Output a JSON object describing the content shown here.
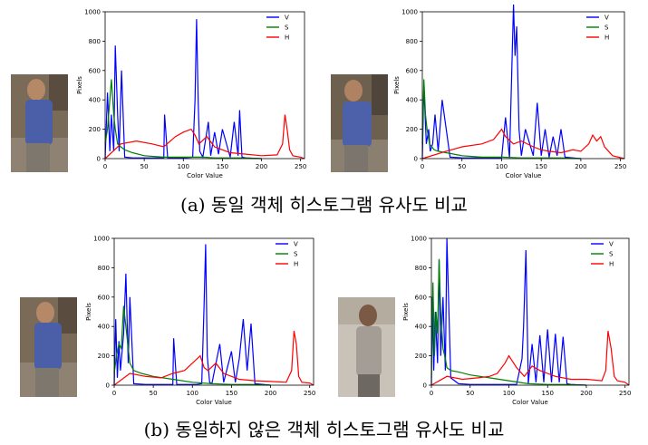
{
  "captions": {
    "a": "(a) 동일 객체 히스토그램 유사도 비교",
    "b": "(b) 동일하지 않은 객체 히스토그램 유사도 비교"
  },
  "colors": {
    "V": "#0000ff",
    "S": "#008000",
    "H": "#ff0000"
  },
  "chart_data": [
    {
      "type": "line",
      "title": "",
      "xlabel": "Color Value",
      "ylabel": "Pixels",
      "xlim": [
        0,
        255
      ],
      "ylim": [
        0,
        1000
      ],
      "xticks": [
        0,
        50,
        100,
        150,
        200,
        250
      ],
      "yticks": [
        0,
        200,
        400,
        600,
        800,
        1000
      ],
      "legend": "top-right",
      "series": [
        {
          "name": "V",
          "x": [
            0,
            3,
            6,
            8,
            11,
            13,
            16,
            18,
            21,
            25,
            35,
            50,
            75,
            76,
            80,
            100,
            112,
            115,
            117,
            119,
            121,
            125,
            132,
            135,
            140,
            145,
            150,
            160,
            165,
            170,
            172,
            175,
            180,
            200
          ],
          "values": [
            0,
            450,
            50,
            300,
            50,
            770,
            300,
            50,
            600,
            10,
            5,
            5,
            5,
            300,
            5,
            5,
            10,
            400,
            950,
            380,
            50,
            10,
            250,
            20,
            180,
            30,
            200,
            10,
            250,
            20,
            330,
            10,
            5,
            0
          ]
        },
        {
          "name": "S",
          "x": [
            0,
            3,
            6,
            8,
            11,
            13,
            16,
            20,
            25,
            35,
            50,
            75,
            100,
            125,
            140,
            150,
            175,
            200
          ],
          "values": [
            100,
            200,
            400,
            540,
            300,
            200,
            100,
            80,
            60,
            40,
            20,
            10,
            10,
            10,
            5,
            5,
            5,
            0
          ]
        },
        {
          "name": "H",
          "x": [
            0,
            20,
            40,
            60,
            75,
            90,
            100,
            110,
            115,
            120,
            130,
            140,
            150,
            160,
            180,
            200,
            220,
            227,
            230,
            233,
            236,
            240,
            250,
            255
          ],
          "values": [
            0,
            100,
            120,
            100,
            80,
            150,
            180,
            200,
            160,
            100,
            150,
            80,
            60,
            40,
            30,
            20,
            25,
            100,
            300,
            190,
            60,
            20,
            10,
            0
          ]
        }
      ]
    },
    {
      "type": "line",
      "title": "",
      "xlabel": "Color Value",
      "ylabel": "Pixels",
      "xlim": [
        0,
        255
      ],
      "ylim": [
        0,
        1000
      ],
      "xticks": [
        0,
        50,
        100,
        150,
        200,
        250
      ],
      "yticks": [
        0,
        200,
        400,
        600,
        800,
        1000
      ],
      "legend": "top-right",
      "series": [
        {
          "name": "V",
          "x": [
            0,
            2,
            5,
            8,
            10,
            13,
            16,
            20,
            25,
            35,
            50,
            75,
            100,
            105,
            110,
            115,
            117,
            119,
            122,
            125,
            130,
            140,
            145,
            150,
            155,
            160,
            165,
            170,
            175,
            180,
            200
          ],
          "values": [
            0,
            500,
            100,
            200,
            50,
            100,
            300,
            50,
            400,
            10,
            5,
            5,
            5,
            280,
            5,
            1050,
            700,
            900,
            200,
            20,
            200,
            20,
            380,
            20,
            200,
            10,
            150,
            20,
            200,
            10,
            0
          ]
        },
        {
          "name": "S",
          "x": [
            0,
            2,
            4,
            6,
            9,
            12,
            15,
            20,
            30,
            50,
            75,
            100,
            125,
            150,
            175,
            200
          ],
          "values": [
            100,
            540,
            300,
            200,
            100,
            80,
            60,
            50,
            40,
            20,
            10,
            10,
            5,
            5,
            5,
            0
          ]
        },
        {
          "name": "H",
          "x": [
            0,
            30,
            50,
            75,
            90,
            100,
            105,
            115,
            125,
            140,
            150,
            160,
            175,
            190,
            200,
            210,
            215,
            220,
            225,
            230,
            240,
            255
          ],
          "values": [
            0,
            50,
            80,
            100,
            130,
            200,
            150,
            100,
            120,
            80,
            60,
            50,
            40,
            60,
            50,
            100,
            160,
            120,
            150,
            80,
            20,
            0
          ]
        }
      ]
    },
    {
      "type": "line",
      "title": "",
      "xlabel": "Color Value",
      "ylabel": "Pixels",
      "xlim": [
        0,
        255
      ],
      "ylim": [
        0,
        1000
      ],
      "xticks": [
        0,
        50,
        100,
        150,
        200,
        250
      ],
      "yticks": [
        0,
        200,
        400,
        600,
        800,
        1000
      ],
      "legend": "top-right",
      "series": [
        {
          "name": "V",
          "x": [
            0,
            2,
            4,
            6,
            8,
            12,
            15,
            18,
            20,
            25,
            40,
            60,
            75,
            76,
            80,
            100,
            105,
            112,
            115,
            117,
            119,
            122,
            125,
            135,
            140,
            150,
            155,
            160,
            165,
            170,
            175,
            180,
            200
          ],
          "values": [
            0,
            450,
            50,
            300,
            100,
            350,
            760,
            150,
            600,
            10,
            5,
            5,
            5,
            320,
            5,
            5,
            5,
            10,
            550,
            960,
            200,
            20,
            10,
            280,
            20,
            230,
            20,
            180,
            450,
            100,
            420,
            10,
            0
          ]
        },
        {
          "name": "S",
          "x": [
            0,
            3,
            6,
            9,
            12,
            15,
            18,
            20,
            25,
            35,
            50,
            75,
            100,
            125,
            150,
            175,
            200
          ],
          "values": [
            80,
            200,
            280,
            250,
            540,
            400,
            250,
            150,
            100,
            80,
            60,
            40,
            20,
            10,
            5,
            5,
            0
          ]
        },
        {
          "name": "H",
          "x": [
            0,
            20,
            40,
            60,
            75,
            90,
            100,
            110,
            115,
            120,
            130,
            140,
            150,
            160,
            180,
            200,
            220,
            227,
            230,
            233,
            236,
            240,
            250,
            255
          ],
          "values": [
            0,
            80,
            60,
            50,
            80,
            100,
            150,
            200,
            120,
            100,
            150,
            80,
            60,
            40,
            30,
            25,
            20,
            100,
            370,
            280,
            60,
            20,
            15,
            0
          ]
        }
      ]
    },
    {
      "type": "line",
      "title": "",
      "xlabel": "Color Value",
      "ylabel": "Pixels",
      "xlim": [
        0,
        255
      ],
      "ylim": [
        0,
        1000
      ],
      "xticks": [
        0,
        50,
        100,
        150,
        200,
        250
      ],
      "yticks": [
        0,
        200,
        400,
        600,
        800,
        1000
      ],
      "legend": "top-right",
      "series": [
        {
          "name": "V",
          "x": [
            0,
            1,
            3,
            5,
            8,
            10,
            12,
            15,
            18,
            20,
            25,
            35,
            50,
            75,
            100,
            110,
            117,
            119,
            122,
            125,
            130,
            135,
            140,
            145,
            150,
            155,
            160,
            165,
            170,
            175,
            180,
            200
          ],
          "values": [
            0,
            600,
            100,
            500,
            150,
            850,
            200,
            600,
            100,
            1000,
            50,
            10,
            5,
            5,
            5,
            5,
            180,
            400,
            920,
            10,
            280,
            20,
            340,
            20,
            380,
            20,
            350,
            20,
            330,
            10,
            5,
            0
          ]
        },
        {
          "name": "S",
          "x": [
            0,
            2,
            4,
            6,
            8,
            10,
            12,
            15,
            18,
            20,
            25,
            35,
            50,
            75,
            100,
            125,
            150,
            175,
            200
          ],
          "values": [
            50,
            700,
            200,
            500,
            350,
            860,
            500,
            250,
            180,
            120,
            100,
            90,
            70,
            50,
            30,
            10,
            5,
            5,
            0
          ]
        },
        {
          "name": "H",
          "x": [
            0,
            20,
            40,
            60,
            75,
            85,
            95,
            100,
            110,
            120,
            130,
            140,
            150,
            160,
            180,
            200,
            220,
            225,
            228,
            232,
            236,
            240,
            250,
            255
          ],
          "values": [
            0,
            60,
            40,
            50,
            60,
            80,
            150,
            200,
            120,
            60,
            130,
            100,
            80,
            60,
            40,
            40,
            30,
            100,
            370,
            250,
            60,
            30,
            20,
            0
          ]
        }
      ]
    }
  ]
}
